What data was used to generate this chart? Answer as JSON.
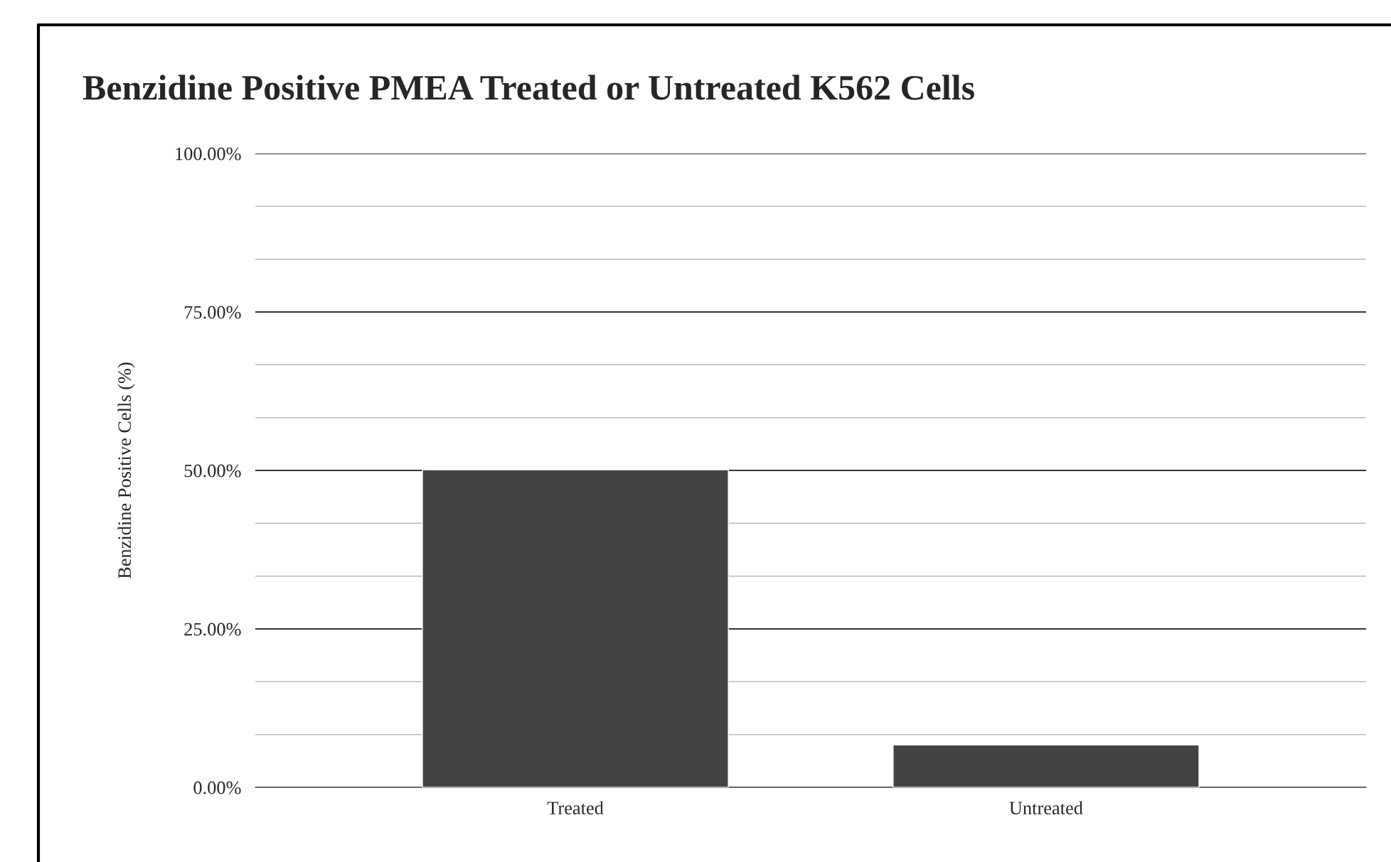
{
  "chart_data": {
    "type": "bar",
    "title": "Benzidine Positive PMEA Treated or Untreated K562 Cells",
    "ylabel": "Benzidine Positive Cells (%)",
    "categories": [
      "Treated",
      "Untreated"
    ],
    "values": [
      50.1,
      6.7
    ],
    "color": "#434343",
    "ylim": [
      0,
      100
    ],
    "yticks": [
      {
        "value": 0,
        "label": "0.00%"
      },
      {
        "value": 8.33,
        "label": null
      },
      {
        "value": 16.67,
        "label": null
      },
      {
        "value": 25,
        "label": "25.00%"
      },
      {
        "value": 33.33,
        "label": null
      },
      {
        "value": 41.67,
        "label": null
      },
      {
        "value": 50,
        "label": "50.00%"
      },
      {
        "value": 58.33,
        "label": null
      },
      {
        "value": 66.67,
        "label": null
      },
      {
        "value": 75,
        "label": "75.00%"
      },
      {
        "value": 83.33,
        "label": null
      },
      {
        "value": 91.67,
        "label": null
      },
      {
        "value": 100,
        "label": "100.00%"
      }
    ],
    "grid": "y"
  }
}
